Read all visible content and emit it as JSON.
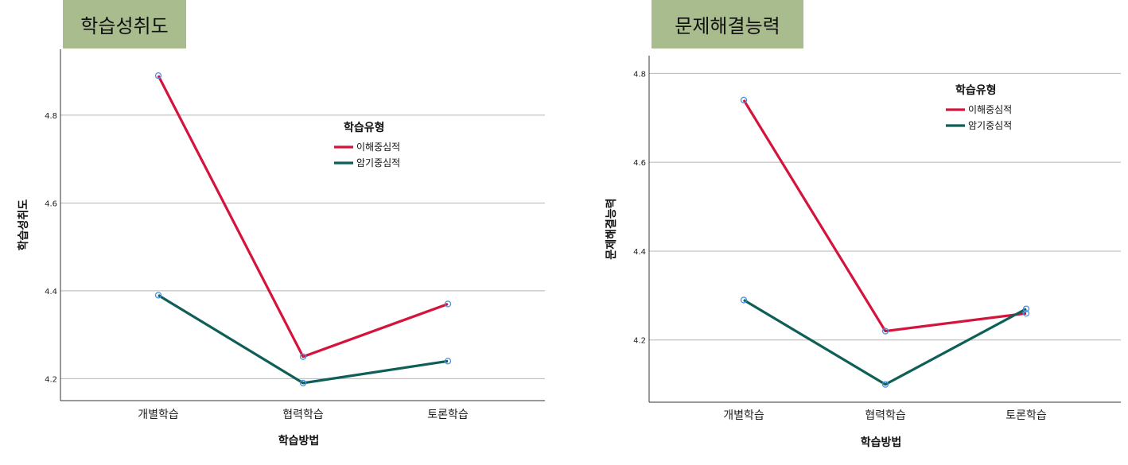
{
  "chart_data": [
    {
      "type": "line",
      "title": "학습성취도",
      "xlabel": "학습방법",
      "ylabel": "학습성취도",
      "categories": [
        "개별학습",
        "협력학습",
        "토론학습"
      ],
      "yticks": [
        "4.2",
        "4.4",
        "4.6",
        "4.8"
      ],
      "ylim": [
        4.15,
        4.95
      ],
      "grid": true,
      "legend_title": "학습유형",
      "legend_position": "top-right",
      "series": [
        {
          "name": "이해중심적",
          "color": "#d4143c",
          "values": [
            4.89,
            4.25,
            4.37
          ]
        },
        {
          "name": "암기중심적",
          "color": "#0e5f58",
          "values": [
            4.39,
            4.19,
            4.24
          ]
        }
      ]
    },
    {
      "type": "line",
      "title": "문제해결능력",
      "xlabel": "학습방법",
      "ylabel": "문제해결능력",
      "categories": [
        "개별학습",
        "협력학습",
        "토론학습"
      ],
      "yticks": [
        "4.2",
        "4.4",
        "4.6",
        "4.8"
      ],
      "ylim": [
        4.06,
        4.84
      ],
      "grid": true,
      "legend_title": "학습유형",
      "legend_position": "top-right",
      "series": [
        {
          "name": "이해중심적",
          "color": "#d4143c",
          "values": [
            4.74,
            4.22,
            4.26
          ]
        },
        {
          "name": "암기중심적",
          "color": "#0e5f58",
          "values": [
            4.29,
            4.1,
            4.27
          ]
        }
      ]
    }
  ]
}
